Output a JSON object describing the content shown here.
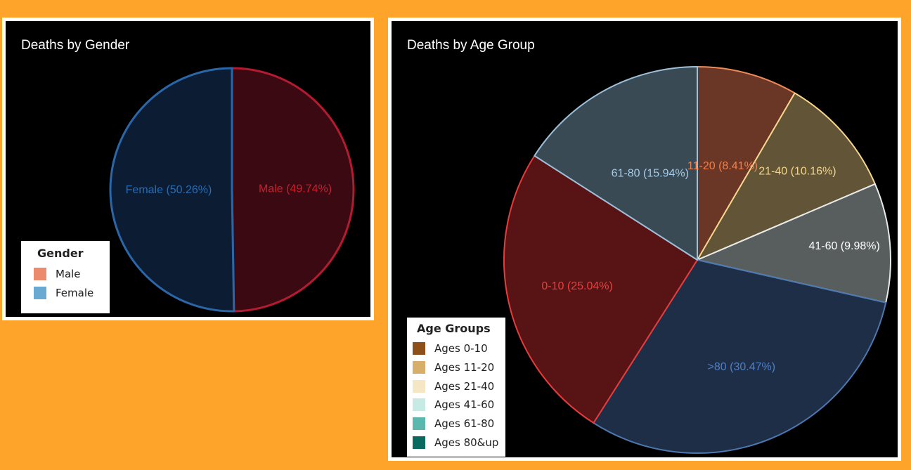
{
  "chart_data": [
    {
      "type": "pie",
      "title": "Deaths by Gender",
      "slices": [
        {
          "label": "Male (49.74%)",
          "value": 49.74,
          "color": "#3A0912",
          "stroke": "#B61A30",
          "label_color": "#C8202E"
        },
        {
          "label": "Female (50.26%)",
          "value": 50.26,
          "color": "#0B1C33",
          "stroke": "#2A66A8",
          "label_color": "#2A6CB2"
        }
      ],
      "legend": {
        "title": "Gender",
        "position": "bottom-left",
        "items": [
          {
            "label": "Male",
            "color": "#EB8A6C"
          },
          {
            "label": "Female",
            "color": "#6AAAD2"
          }
        ]
      }
    },
    {
      "type": "pie",
      "title": "Deaths by Age Group",
      "slices": [
        {
          "label": "11-20 (8.41%)",
          "value": 8.41,
          "color": "#6A3626",
          "stroke": "#F08A5C",
          "label_color": "#F0804E"
        },
        {
          "label": "21-40 (10.16%)",
          "value": 10.16,
          "color": "#625537",
          "stroke": "#F7D68E",
          "label_color": "#F3D48C"
        },
        {
          "label": "41-60 (9.98%)",
          "value": 9.98,
          "color": "#585E5E",
          "stroke": "#E8EAEA",
          "label_color": "#FFFFFF"
        },
        {
          "label": ">80 (30.47%)",
          "value": 30.47,
          "color": "#1E2E47",
          "stroke": "#4C78B0",
          "label_color": "#4F7FC4"
        },
        {
          "label": "0-10 (25.04%)",
          "value": 25.04,
          "color": "#581315",
          "stroke": "#E83B3B",
          "label_color": "#E8403C"
        },
        {
          "label": "61-80 (15.94%)",
          "value": 15.94,
          "color": "#3A4A55",
          "stroke": "#9CC0DA",
          "label_color": "#A6CDEA"
        }
      ],
      "legend": {
        "title": "Age Groups",
        "position": "bottom-left",
        "items": [
          {
            "label": "Ages 0-10",
            "color": "#8C5018"
          },
          {
            "label": "Ages 11-20",
            "color": "#D8AF6A"
          },
          {
            "label": "Ages 21-40",
            "color": "#F5E6C4"
          },
          {
            "label": "Ages 41-60",
            "color": "#C8EAE4"
          },
          {
            "label": "Ages 61-80",
            "color": "#5BB8AE"
          },
          {
            "label": "Ages 80&up",
            "color": "#0A6A60"
          }
        ]
      }
    }
  ]
}
